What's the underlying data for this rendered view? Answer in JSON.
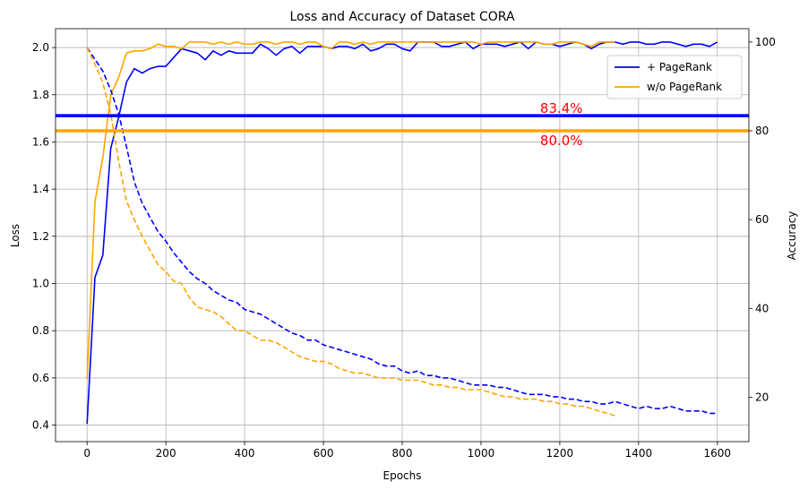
{
  "chart_data": {
    "type": "line",
    "title": "Loss and Accuracy of Dataset CORA",
    "xlabel": "Epochs",
    "ylabel_left": "Loss",
    "ylabel_right": "Accuracy",
    "xlim": [
      -80,
      1680
    ],
    "ylim_left": [
      0.33,
      2.08
    ],
    "ylim_right": [
      10,
      103
    ],
    "xticks": [
      0,
      200,
      400,
      600,
      800,
      1000,
      1200,
      1400,
      1600
    ],
    "yticks_left": [
      0.4,
      0.6,
      0.8,
      1.0,
      1.2,
      1.4,
      1.6,
      1.8,
      2.0
    ],
    "yticks_right": [
      20,
      40,
      60,
      80,
      100
    ],
    "grid": true,
    "legend_position": "upper-right",
    "colors": {
      "pagerank": "#0000ff",
      "no_pagerank": "#ffa500",
      "annotation": "#ff0000"
    },
    "series": [
      {
        "name": "+ PageRank",
        "kind": "accuracy",
        "axis": "right",
        "color": "#0000ff",
        "dash": "solid",
        "x": [
          0,
          20,
          40,
          60,
          80,
          100,
          120,
          140,
          160,
          180,
          200,
          220,
          240,
          260,
          280,
          300,
          320,
          340,
          360,
          380,
          400,
          420,
          440,
          460,
          480,
          500,
          520,
          540,
          560,
          580,
          600,
          620,
          640,
          660,
          680,
          700,
          720,
          740,
          760,
          780,
          800,
          820,
          840,
          860,
          880,
          900,
          920,
          940,
          960,
          980,
          1000,
          1020,
          1040,
          1060,
          1080,
          1100,
          1120,
          1140,
          1160,
          1180,
          1200,
          1220,
          1240,
          1260,
          1280,
          1300,
          1320,
          1340,
          1360,
          1380,
          1400,
          1420,
          1440,
          1460,
          1480,
          1500,
          1520,
          1540,
          1560,
          1580,
          1600
        ],
        "values": [
          14,
          47,
          52,
          76,
          83,
          91,
          94,
          93,
          94,
          94.5,
          94.5,
          96.5,
          98.5,
          98,
          97.5,
          96,
          98,
          97,
          98,
          97.5,
          97.5,
          97.5,
          99.5,
          98.5,
          97,
          98.5,
          99,
          97.5,
          99,
          99,
          99,
          98.5,
          99,
          99,
          98.5,
          99.5,
          98,
          98.5,
          99.5,
          99.5,
          98.5,
          98,
          100,
          100,
          100,
          99,
          99,
          99.5,
          100,
          98.5,
          99.5,
          99.5,
          99.5,
          99,
          99.5,
          100,
          98.5,
          100,
          99.5,
          99.5,
          99,
          99.5,
          100,
          99.5,
          98.5,
          99.5,
          100,
          100,
          99.5,
          100,
          100,
          99.5,
          99.5,
          100,
          100,
          99.5,
          99,
          99.5,
          99.5,
          99,
          100
        ]
      },
      {
        "name": "w/o PageRank",
        "kind": "accuracy",
        "axis": "right",
        "color": "#ffa500",
        "dash": "solid",
        "x": [
          0,
          20,
          40,
          60,
          80,
          100,
          120,
          140,
          160,
          180,
          200,
          220,
          240,
          260,
          280,
          300,
          320,
          340,
          360,
          380,
          400,
          420,
          440,
          460,
          480,
          500,
          520,
          540,
          560,
          580,
          600,
          620,
          640,
          660,
          680,
          700,
          720,
          740,
          760,
          780,
          800,
          820,
          840,
          860,
          880,
          900,
          920,
          940,
          960,
          980,
          1000,
          1020,
          1040,
          1060,
          1080,
          1100,
          1120,
          1140,
          1160,
          1180,
          1200,
          1220,
          1240,
          1260,
          1280,
          1300,
          1320,
          1340
        ],
        "values": [
          24,
          64,
          74,
          88,
          92,
          97.5,
          98,
          98,
          98.5,
          99.5,
          99,
          99,
          98.5,
          100,
          100,
          100,
          99.5,
          100,
          99.5,
          100,
          99.5,
          99.5,
          100,
          100,
          99.5,
          100,
          100,
          99.5,
          100,
          100,
          99,
          98.5,
          100,
          100,
          99.5,
          100,
          99.5,
          100,
          100,
          100,
          100,
          100,
          100,
          100,
          100,
          100,
          100,
          100,
          100,
          100,
          99.5,
          100,
          100,
          100,
          100,
          100,
          100,
          100,
          99.5,
          99.5,
          100,
          100,
          100,
          99.5,
          99,
          100,
          100,
          100
        ]
      },
      {
        "name": "+ PageRank",
        "kind": "loss",
        "axis": "left",
        "color": "#0000ff",
        "dash": "dashed",
        "x": [
          0,
          20,
          40,
          60,
          80,
          100,
          120,
          140,
          160,
          180,
          200,
          220,
          240,
          260,
          280,
          300,
          320,
          340,
          360,
          380,
          400,
          420,
          440,
          460,
          480,
          500,
          520,
          540,
          560,
          580,
          600,
          620,
          640,
          660,
          680,
          700,
          720,
          740,
          760,
          780,
          800,
          820,
          840,
          860,
          880,
          900,
          920,
          940,
          960,
          980,
          1000,
          1020,
          1040,
          1060,
          1080,
          1100,
          1120,
          1140,
          1160,
          1180,
          1200,
          1220,
          1240,
          1260,
          1280,
          1300,
          1320,
          1340,
          1360,
          1380,
          1400,
          1420,
          1440,
          1460,
          1480,
          1500,
          1520,
          1540,
          1560,
          1580,
          1600
        ],
        "values": [
          2.0,
          1.95,
          1.9,
          1.82,
          1.72,
          1.58,
          1.43,
          1.34,
          1.28,
          1.22,
          1.18,
          1.13,
          1.09,
          1.05,
          1.02,
          1.0,
          0.97,
          0.95,
          0.93,
          0.92,
          0.89,
          0.88,
          0.87,
          0.85,
          0.83,
          0.81,
          0.79,
          0.78,
          0.76,
          0.76,
          0.74,
          0.73,
          0.72,
          0.71,
          0.7,
          0.69,
          0.68,
          0.66,
          0.65,
          0.65,
          0.63,
          0.62,
          0.63,
          0.61,
          0.61,
          0.6,
          0.6,
          0.59,
          0.58,
          0.57,
          0.57,
          0.57,
          0.56,
          0.56,
          0.55,
          0.54,
          0.53,
          0.53,
          0.53,
          0.52,
          0.52,
          0.51,
          0.51,
          0.5,
          0.5,
          0.49,
          0.49,
          0.5,
          0.49,
          0.48,
          0.47,
          0.48,
          0.47,
          0.47,
          0.48,
          0.47,
          0.46,
          0.46,
          0.46,
          0.45,
          0.45
        ]
      },
      {
        "name": "w/o PageRank",
        "kind": "loss",
        "axis": "left",
        "color": "#ffa500",
        "dash": "dashed",
        "x": [
          0,
          20,
          40,
          60,
          80,
          100,
          120,
          140,
          160,
          180,
          200,
          220,
          240,
          260,
          280,
          300,
          320,
          340,
          360,
          380,
          400,
          420,
          440,
          460,
          480,
          500,
          520,
          540,
          560,
          580,
          600,
          620,
          640,
          660,
          680,
          700,
          720,
          740,
          760,
          780,
          800,
          820,
          840,
          860,
          880,
          900,
          920,
          940,
          960,
          980,
          1000,
          1020,
          1040,
          1060,
          1080,
          1100,
          1120,
          1140,
          1160,
          1180,
          1200,
          1220,
          1240,
          1260,
          1280,
          1300,
          1320,
          1340
        ],
        "values": [
          2.0,
          1.93,
          1.85,
          1.72,
          1.52,
          1.35,
          1.27,
          1.2,
          1.14,
          1.08,
          1.05,
          1.01,
          1.0,
          0.94,
          0.9,
          0.89,
          0.88,
          0.86,
          0.83,
          0.8,
          0.8,
          0.78,
          0.76,
          0.76,
          0.75,
          0.73,
          0.71,
          0.69,
          0.68,
          0.67,
          0.67,
          0.66,
          0.64,
          0.63,
          0.62,
          0.62,
          0.61,
          0.6,
          0.6,
          0.6,
          0.59,
          0.59,
          0.59,
          0.58,
          0.57,
          0.57,
          0.56,
          0.56,
          0.55,
          0.55,
          0.55,
          0.54,
          0.53,
          0.52,
          0.52,
          0.51,
          0.51,
          0.51,
          0.5,
          0.5,
          0.49,
          0.49,
          0.48,
          0.48,
          0.47,
          0.46,
          0.45,
          0.44
        ]
      }
    ],
    "reference_lines": [
      {
        "value": 83.4,
        "axis": "right",
        "color": "#0000ff",
        "label": "83.4%",
        "label_x": 1150,
        "label_side": "above"
      },
      {
        "value": 80.0,
        "axis": "right",
        "color": "#ffa500",
        "label": "80.0%",
        "label_x": 1150,
        "label_side": "below"
      }
    ],
    "legend": [
      {
        "name": "+ PageRank",
        "color": "#0000ff"
      },
      {
        "name": "w/o PageRank",
        "color": "#ffa500"
      }
    ]
  }
}
